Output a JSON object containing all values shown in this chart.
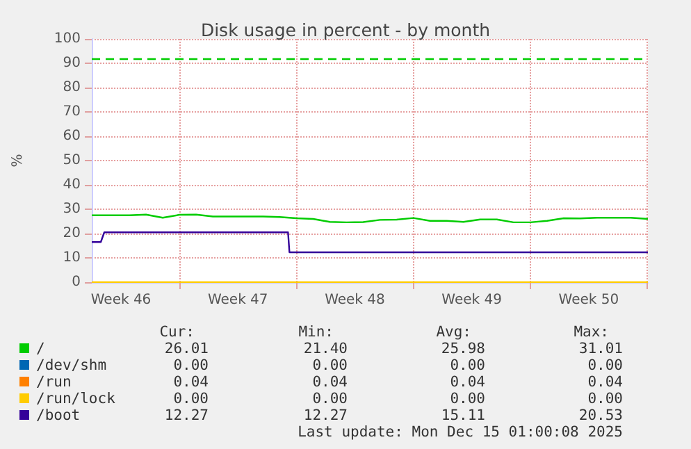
{
  "chart_data": {
    "type": "line",
    "title": "Disk usage in percent - by month",
    "ylabel": "%",
    "xlim": [
      "2025-11-11T18:00",
      "2025-12-15T01:00"
    ],
    "xticks": [
      {
        "value": "2025-11-13T12:00",
        "label": "Week 46"
      },
      {
        "value": "2025-11-17T00:00",
        "label": null
      },
      {
        "value": "2025-11-20T12:00",
        "label": "Week 47"
      },
      {
        "value": "2025-11-24T00:00",
        "label": null
      },
      {
        "value": "2025-11-27T12:00",
        "label": "Week 48"
      },
      {
        "value": "2025-12-01T00:00",
        "label": null
      },
      {
        "value": "2025-12-04T12:00",
        "label": "Week 49"
      },
      {
        "value": "2025-12-08T00:00",
        "label": null
      },
      {
        "value": "2025-12-11T12:00",
        "label": "Week 50"
      },
      {
        "value": "2025-12-15T00:00",
        "label": null
      }
    ],
    "ylim": [
      0,
      100
    ],
    "yticks": [
      0,
      10,
      20,
      30,
      40,
      50,
      60,
      70,
      80,
      90,
      100
    ],
    "grid": true,
    "legend": "bottom",
    "marker": "none",
    "line_style": "solid",
    "series": [
      {
        "name": "/",
        "color": "#00cc00",
        "x": [
          "2025-11-11T18:00",
          "2025-11-12T00:00",
          "2025-11-13T00:00",
          "2025-11-14T00:00",
          "2025-11-15T00:00",
          "2025-11-16T00:00",
          "2025-11-17T00:00",
          "2025-11-18T00:00",
          "2025-11-19T00:00",
          "2025-11-20T00:00",
          "2025-11-21T00:00",
          "2025-11-22T00:00",
          "2025-11-23T00:00",
          "2025-11-24T00:00",
          "2025-11-25T00:00",
          "2025-11-26T00:00",
          "2025-11-27T00:00",
          "2025-11-28T00:00",
          "2025-11-29T00:00",
          "2025-11-30T00:00",
          "2025-12-01T00:00",
          "2025-12-02T00:00",
          "2025-12-03T00:00",
          "2025-12-04T00:00",
          "2025-12-05T00:00",
          "2025-12-06T00:00",
          "2025-12-07T00:00",
          "2025-12-08T00:00",
          "2025-12-09T00:00",
          "2025-12-10T00:00",
          "2025-12-11T00:00",
          "2025-12-12T00:00",
          "2025-12-13T00:00",
          "2025-12-14T00:00",
          "2025-12-15T01:00"
        ],
        "values": [
          27.5,
          27.5,
          27.5,
          27.5,
          27.8,
          26.5,
          27.7,
          27.8,
          27,
          27,
          27,
          27,
          26.8,
          26.3,
          26,
          24.8,
          24.6,
          24.7,
          25.6,
          25.7,
          26.4,
          25.2,
          25.2,
          24.8,
          25.8,
          25.8,
          24.6,
          24.6,
          25.2,
          26.3,
          26.2,
          26.5,
          26.5,
          26.5,
          26
        ]
      },
      {
        "name": "/dev/shm",
        "color": "#0066b3"
      },
      {
        "name": "/run",
        "color": "#ff8000"
      },
      {
        "name": "/run/lock",
        "color": "#ffcc00",
        "x": [
          "2025-11-11T18:00",
          "2025-12-15T01:00"
        ],
        "values": [
          0,
          0
        ]
      },
      {
        "name": "/boot",
        "color": "#330099",
        "x": [
          "2025-11-11T18:00",
          "2025-11-12T07:00",
          "2025-11-12T12:00",
          "2025-11-23T12:00",
          "2025-11-23T14:00",
          "2025-12-15T01:00"
        ],
        "values": [
          16.5,
          16.5,
          20.5,
          20.5,
          12.3,
          12.3
        ]
      }
    ],
    "ref_lines": [
      {
        "axis": "y",
        "value": 92,
        "color": "#00cc00",
        "line_style": "dashed"
      }
    ],
    "annotations": [
      "Cur:",
      "Min:",
      "Avg:",
      "Max:",
      "26.01",
      "21.40",
      "25.98",
      "31.01",
      "0.00",
      "0.00",
      "0.00",
      "0.00",
      "0.04",
      "0.04",
      "0.04",
      "0.04",
      "0.00",
      "0.00",
      "0.00",
      "0.00",
      "12.27",
      "12.27",
      "15.11",
      "20.53",
      "Last update: Mon Dec 15 01:00:08 2025"
    ]
  }
}
